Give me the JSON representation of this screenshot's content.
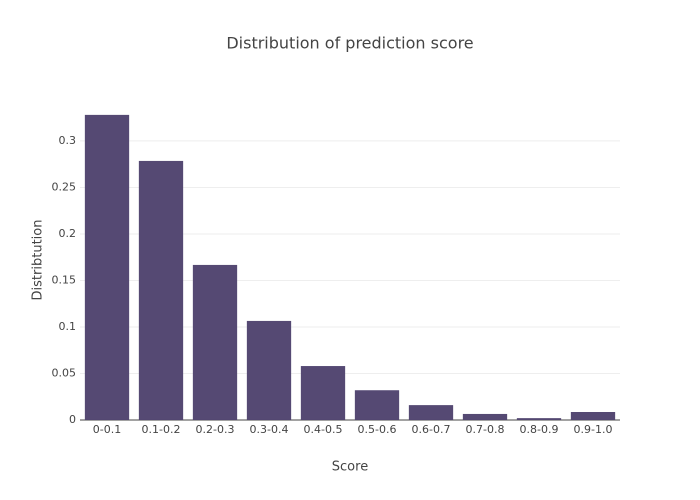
{
  "chart_data": {
    "type": "bar",
    "title": "Distribution of prediction score",
    "x_label": "Score",
    "y_label": "Distribtution",
    "categories": [
      "0-0.1",
      "0.1-0.2",
      "0.2-0.3",
      "0.3-0.4",
      "0.4-0.5",
      "0.5-0.6",
      "0.6-0.7",
      "0.7-0.8",
      "0.8-0.9",
      "0.9-1.0"
    ],
    "values": [
      0.328,
      0.2785,
      0.1667,
      0.1065,
      0.058,
      0.032,
      0.016,
      0.0065,
      0.002,
      0.0086
    ],
    "color": "#524570",
    "ylim": [
      0,
      0.344
    ],
    "yticks": [
      0,
      0.05,
      0.1,
      0.15,
      0.2,
      0.25,
      0.3
    ],
    "grid": true
  }
}
